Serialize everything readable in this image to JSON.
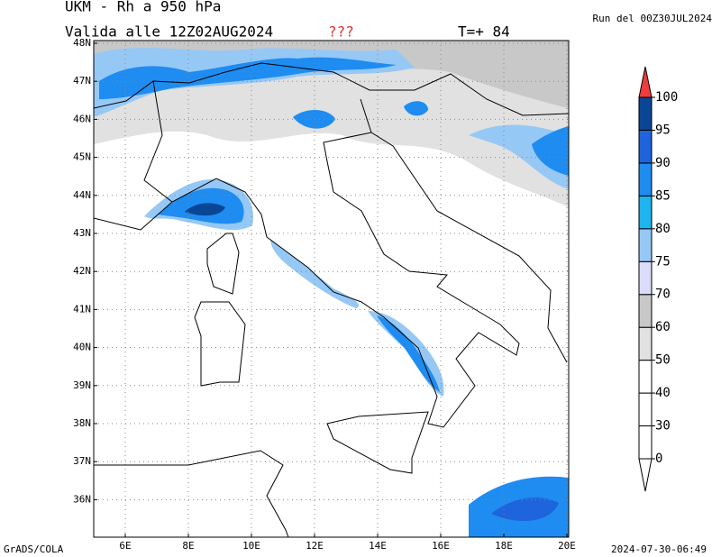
{
  "header": {
    "title": "UKM - Rh a 950 hPa",
    "valid": "Valida alle 12Z02AUG2024",
    "flag": "???",
    "forecast": "T=+ 84",
    "run": "Run del 00Z30JUL2024"
  },
  "map": {
    "lat_labels": [
      {
        "value": 48,
        "label": "48N"
      },
      {
        "value": 47,
        "label": "47N"
      },
      {
        "value": 46,
        "label": "46N"
      },
      {
        "value": 45,
        "label": "45N"
      },
      {
        "value": 44,
        "label": "44N"
      },
      {
        "value": 43,
        "label": "43N"
      },
      {
        "value": 42,
        "label": "42N"
      },
      {
        "value": 41,
        "label": "41N"
      },
      {
        "value": 40,
        "label": "40N"
      },
      {
        "value": 39,
        "label": "39N"
      },
      {
        "value": 38,
        "label": "38N"
      },
      {
        "value": 37,
        "label": "37N"
      },
      {
        "value": 36,
        "label": "36N"
      }
    ],
    "lon_labels": [
      {
        "value": 6,
        "label": "6E"
      },
      {
        "value": 8,
        "label": "8E"
      },
      {
        "value": 10,
        "label": "10E"
      },
      {
        "value": 12,
        "label": "12E"
      },
      {
        "value": 14,
        "label": "14E"
      },
      {
        "value": 16,
        "label": "16E"
      },
      {
        "value": 18,
        "label": "18E"
      },
      {
        "value": 20,
        "label": "20E"
      }
    ]
  },
  "colorbar": {
    "levels": [
      0,
      30,
      40,
      50,
      60,
      70,
      75,
      80,
      85,
      90,
      95,
      100
    ],
    "colors": [
      "#ffffff",
      "#ffffff",
      "#ffffff",
      "#ffffff",
      "#e1e1e1",
      "#c8c8c8",
      "#dcdcfa",
      "#96c8f5",
      "#1eb4f0",
      "#1e8cf0",
      "#1e64dc",
      "#0a4696",
      "#f03c3c"
    ]
  },
  "footer": {
    "left": "GrADS/COLA",
    "right": "2024-07-30-06:49"
  }
}
